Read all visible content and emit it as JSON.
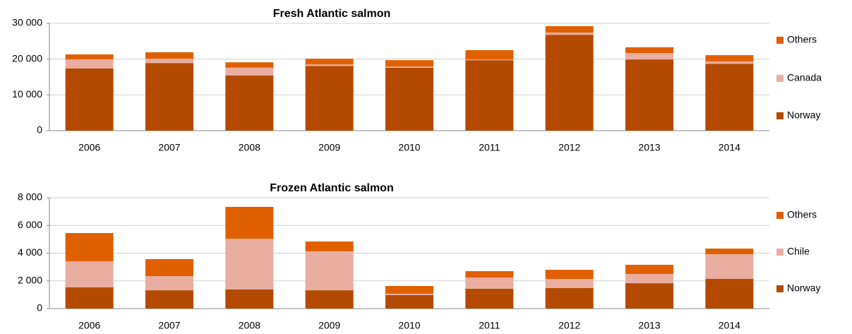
{
  "chart_data": [
    {
      "type": "stacked_bar",
      "title": "Fresh Atlantic salmon",
      "categories": [
        "2006",
        "2007",
        "2008",
        "2009",
        "2010",
        "2011",
        "2012",
        "2013",
        "2014"
      ],
      "series": [
        {
          "name": "Norway",
          "color": "#b44a00",
          "values": [
            17400,
            18900,
            15400,
            18100,
            17600,
            19700,
            26800,
            19900,
            18700
          ]
        },
        {
          "name": "Canada",
          "color": "#e9aea0",
          "values": [
            2500,
            1200,
            2200,
            400,
            300,
            200,
            600,
            1800,
            600
          ]
        },
        {
          "name": "Others",
          "color": "#e06000",
          "values": [
            1400,
            1800,
            1500,
            1600,
            1800,
            2600,
            1800,
            1600,
            1800
          ]
        }
      ],
      "ylim": [
        0,
        30000
      ],
      "yticks": [
        0,
        {
          "value": 10000,
          "label": "10 000"
        },
        {
          "value": 20000,
          "label": "20 000"
        },
        {
          "value": 30000,
          "label": "30 000"
        }
      ],
      "grid": true,
      "legend": "right"
    },
    {
      "type": "stacked_bar",
      "title": "Frozen Atlantic salmon",
      "categories": [
        "2006",
        "2007",
        "2008",
        "2009",
        "2010",
        "2011",
        "2012",
        "2013",
        "2014"
      ],
      "series": [
        {
          "name": "Norway",
          "color": "#b44a00",
          "values": [
            1530,
            1320,
            1380,
            1320,
            970,
            1430,
            1480,
            1830,
            2140
          ]
        },
        {
          "name": "Chile",
          "color": "#e9aea0",
          "values": [
            1880,
            1020,
            3660,
            2810,
            100,
            810,
            660,
            670,
            1780
          ]
        },
        {
          "name": "Others",
          "color": "#e06000",
          "values": [
            2040,
            1230,
            2300,
            710,
            560,
            460,
            660,
            660,
            410
          ]
        }
      ],
      "ylim": [
        0,
        8000
      ],
      "yticks": [
        0,
        {
          "value": 2000,
          "label": "2 000"
        },
        {
          "value": 4000,
          "label": "4 000"
        },
        {
          "value": 6000,
          "label": "6 000"
        },
        {
          "value": 8000,
          "label": "8 000"
        }
      ],
      "grid": true,
      "legend": "right"
    }
  ]
}
